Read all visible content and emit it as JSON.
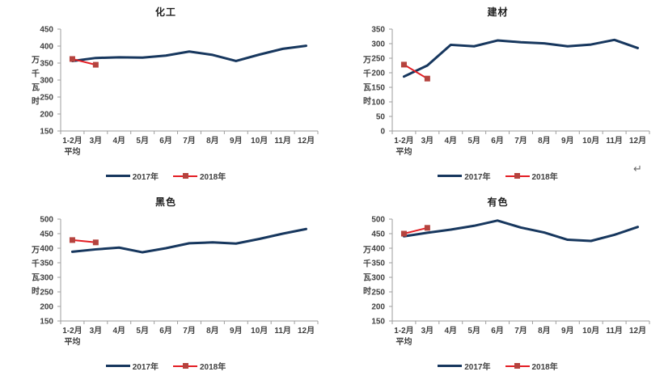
{
  "page": {
    "background": "#ffffff",
    "paragraph_mark": "↵"
  },
  "styles": {
    "series_2017_color": "#17375E",
    "series_2018_line_color": "#E31E24",
    "series_2018_marker_color": "#B5433E",
    "axis_color": "#9E9E9E",
    "text_color": "#404040",
    "title_color": "#1F1F1F"
  },
  "chart_data": [
    {
      "type": "line",
      "title": "化工",
      "ylabel": "万千瓦时",
      "categories": [
        [
          "1-2月",
          "平均"
        ],
        [
          "3月"
        ],
        [
          "4月"
        ],
        [
          "5月"
        ],
        [
          "6月"
        ],
        [
          "7月"
        ],
        [
          "8月"
        ],
        [
          "9月"
        ],
        [
          "10月"
        ],
        [
          "11月"
        ],
        [
          "12月"
        ]
      ],
      "ylim": [
        150,
        450
      ],
      "ytick_step": 50,
      "grid": false,
      "legend_position": "bottom",
      "series": [
        {
          "name": "2017年",
          "color": "#17375E",
          "marker": "none",
          "values": [
            356,
            365,
            367,
            366,
            372,
            384,
            374,
            356,
            375,
            392,
            401
          ]
        },
        {
          "name": "2018年",
          "color": "#E31E24",
          "marker": "square",
          "marker_color": "#B5433E",
          "values": [
            362,
            345,
            null,
            null,
            null,
            null,
            null,
            null,
            null,
            null,
            null
          ]
        }
      ]
    },
    {
      "type": "line",
      "title": "建材",
      "ylabel": "万千瓦时",
      "categories": [
        [
          "1-2月",
          "平均"
        ],
        [
          "3月"
        ],
        [
          "4月"
        ],
        [
          "5月"
        ],
        [
          "6月"
        ],
        [
          "7月"
        ],
        [
          "8月"
        ],
        [
          "9月"
        ],
        [
          "10月"
        ],
        [
          "11月"
        ],
        [
          "12月"
        ]
      ],
      "ylim": [
        0,
        350
      ],
      "ytick_step": 50,
      "grid": false,
      "legend_position": "bottom",
      "series": [
        {
          "name": "2017年",
          "color": "#17375E",
          "marker": "none",
          "values": [
            187,
            225,
            296,
            291,
            311,
            305,
            301,
            291,
            297,
            313,
            285
          ]
        },
        {
          "name": "2018年",
          "color": "#E31E24",
          "marker": "square",
          "marker_color": "#B5433E",
          "values": [
            228,
            180,
            null,
            null,
            null,
            null,
            null,
            null,
            null,
            null,
            null
          ]
        }
      ]
    },
    {
      "type": "line",
      "title": "黑色",
      "ylabel": "万千瓦时",
      "categories": [
        [
          "1-2月",
          "平均"
        ],
        [
          "3月"
        ],
        [
          "4月"
        ],
        [
          "5月"
        ],
        [
          "6月"
        ],
        [
          "7月"
        ],
        [
          "8月"
        ],
        [
          "9月"
        ],
        [
          "10月"
        ],
        [
          "11月"
        ],
        [
          "12月"
        ]
      ],
      "ylim": [
        150,
        500
      ],
      "ytick_step": 50,
      "grid": false,
      "legend_position": "bottom",
      "series": [
        {
          "name": "2017年",
          "color": "#17375E",
          "marker": "none",
          "values": [
            388,
            396,
            402,
            386,
            400,
            417,
            420,
            416,
            432,
            450,
            466
          ]
        },
        {
          "name": "2018年",
          "color": "#E31E24",
          "marker": "square",
          "marker_color": "#B5433E",
          "values": [
            428,
            420,
            null,
            null,
            null,
            null,
            null,
            null,
            null,
            null,
            null
          ]
        }
      ]
    },
    {
      "type": "line",
      "title": "有色",
      "ylabel": "万千瓦时",
      "categories": [
        [
          "1-2月",
          "平均"
        ],
        [
          "3月"
        ],
        [
          "4月"
        ],
        [
          "5月"
        ],
        [
          "6月"
        ],
        [
          "7月"
        ],
        [
          "8月"
        ],
        [
          "9月"
        ],
        [
          "10月"
        ],
        [
          "11月"
        ],
        [
          "12月"
        ]
      ],
      "ylim": [
        150,
        500
      ],
      "ytick_step": 50,
      "grid": false,
      "legend_position": "bottom",
      "series": [
        {
          "name": "2017年",
          "color": "#17375E",
          "marker": "none",
          "values": [
            441,
            453,
            464,
            477,
            495,
            471,
            454,
            429,
            425,
            446,
            473
          ]
        },
        {
          "name": "2018年",
          "color": "#E31E24",
          "marker": "square",
          "marker_color": "#B5433E",
          "values": [
            450,
            470,
            null,
            null,
            null,
            null,
            null,
            null,
            null,
            null,
            null
          ]
        }
      ]
    }
  ]
}
